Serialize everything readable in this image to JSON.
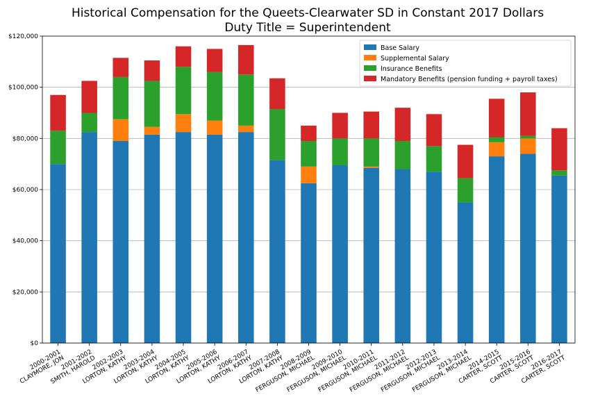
{
  "chart_data": {
    "type": "bar",
    "stacked": true,
    "title": "Historical Compensation for the Queets-Clearwater SD in Constant 2017 Dollars",
    "subtitle": "Duty Title = Superintendent",
    "xlabel": "",
    "ylabel": "",
    "ylim": [
      0,
      120000
    ],
    "yticks": [
      "$0",
      "$20,000",
      "$40,000",
      "$60,000",
      "$80,000",
      "$100,000",
      "$120,000"
    ],
    "grid": true,
    "legend_position": "top-right",
    "categories": [
      [
        "2000-2001",
        "CLAYMORE, JON"
      ],
      [
        "2001-2002",
        "SMITH, HAROLD"
      ],
      [
        "2002-2003",
        "LORTON, KATHY"
      ],
      [
        "2003-2004",
        "LORTON, KATHY"
      ],
      [
        "2004-2005",
        "LORTON, KATHY"
      ],
      [
        "2005-2006",
        "LORTON, KATHY"
      ],
      [
        "2006-2007",
        "LORTON, KATHY"
      ],
      [
        "2007-2008",
        "LORTON, KATHY"
      ],
      [
        "2008-2009",
        "FERGUSON, MICHAEL"
      ],
      [
        "2009-2010",
        "FERGUSON, MICHAEL"
      ],
      [
        "2010-2011",
        "FERGUSON, MICHAEL"
      ],
      [
        "2011-2012",
        "FERGUSON, MICHAEL"
      ],
      [
        "2012-2013",
        "FERGUSON, MICHAEL"
      ],
      [
        "2013-2014",
        "FERGUSON, MICHAEL"
      ],
      [
        "2014-2015",
        "CARTER, SCOTT"
      ],
      [
        "2015-2016",
        "CARTER, SCOTT"
      ],
      [
        "2016-2017",
        "CARTER, SCOTT"
      ]
    ],
    "series": [
      {
        "name": "Base Salary",
        "color": "#1f77b4",
        "values": [
          70000,
          82500,
          79000,
          81500,
          82500,
          81500,
          82500,
          71500,
          62500,
          69500,
          68500,
          68000,
          67000,
          55000,
          73000,
          74000,
          65500
        ]
      },
      {
        "name": "Supplemental Salary",
        "color": "#ff7f0e",
        "values": [
          0,
          0,
          8500,
          3000,
          7000,
          5500,
          2500,
          0,
          6500,
          0,
          500,
          0,
          0,
          0,
          5500,
          6000,
          0
        ]
      },
      {
        "name": "Insurance Benefits",
        "color": "#2ca02c",
        "values": [
          13000,
          7500,
          16500,
          18000,
          18500,
          19000,
          20000,
          20000,
          10000,
          10500,
          11000,
          11000,
          10000,
          9500,
          2000,
          1000,
          2000
        ]
      },
      {
        "name": "Mandatory Benefits (pension funding + payroll taxes)",
        "color": "#d62728",
        "values": [
          14000,
          12500,
          7500,
          8000,
          8000,
          9000,
          11500,
          12000,
          6000,
          10000,
          10500,
          13000,
          12500,
          13000,
          15000,
          17000,
          16500
        ]
      }
    ]
  }
}
